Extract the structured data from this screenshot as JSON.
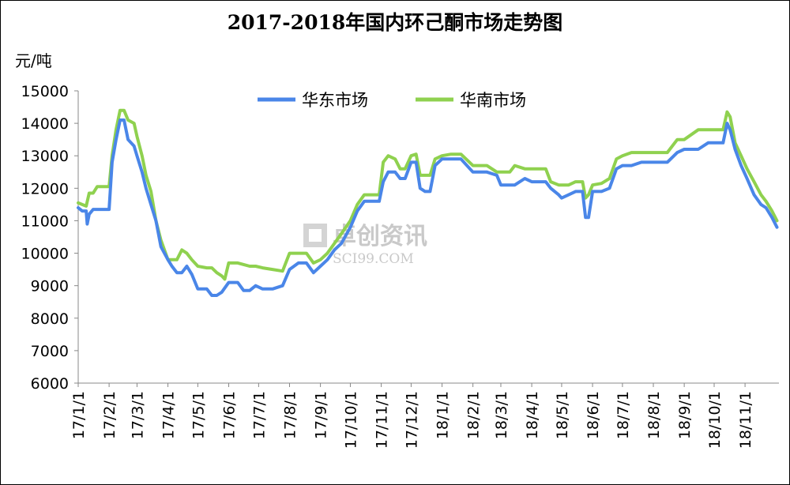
{
  "chart_data": {
    "type": "line",
    "title": "2017-2018年国内环己酮市场走势图",
    "ylabel": "元/吨",
    "xlabel": "",
    "ylim": [
      6000,
      15000
    ],
    "yticks": [
      6000,
      7000,
      8000,
      9000,
      10000,
      11000,
      12000,
      13000,
      14000,
      15000
    ],
    "grid": false,
    "legend_position": "top",
    "x_tick_labels": [
      "17/1/1",
      "17/2/1",
      "17/3/1",
      "17/4/1",
      "17/5/1",
      "17/6/1",
      "17/7/1",
      "17/8/1",
      "17/9/1",
      "17/10/1",
      "17/11/1",
      "17/12/1",
      "18/1/1",
      "18/2/1",
      "18/3/1",
      "18/4/1",
      "18/5/1",
      "18/6/1",
      "18/7/1",
      "18/8/1",
      "18/9/1",
      "18/10/1",
      "18/11/1"
    ],
    "series": [
      {
        "name": "华东市场",
        "color": "#4a86e8",
        "points": [
          [
            "17/1/1",
            11400
          ],
          [
            "17/1/5",
            11300
          ],
          [
            "17/1/9",
            11300
          ],
          [
            "17/1/10",
            10900
          ],
          [
            "17/1/12",
            11200
          ],
          [
            "17/1/16",
            11350
          ],
          [
            "17/2/1",
            11350
          ],
          [
            "17/2/4",
            12800
          ],
          [
            "17/2/8",
            13500
          ],
          [
            "17/2/12",
            14100
          ],
          [
            "17/2/16",
            14100
          ],
          [
            "17/2/20",
            13500
          ],
          [
            "17/2/26",
            13300
          ],
          [
            "17/3/1",
            13000
          ],
          [
            "17/3/6",
            12500
          ],
          [
            "17/3/10",
            12000
          ],
          [
            "17/3/15",
            11500
          ],
          [
            "17/3/20",
            11000
          ],
          [
            "17/3/25",
            10200
          ],
          [
            "17/4/1",
            9800
          ],
          [
            "17/4/5",
            9600
          ],
          [
            "17/4/10",
            9400
          ],
          [
            "17/4/15",
            9400
          ],
          [
            "17/4/20",
            9600
          ],
          [
            "17/4/25",
            9350
          ],
          [
            "17/5/1",
            8900
          ],
          [
            "17/5/10",
            8900
          ],
          [
            "17/5/15",
            8700
          ],
          [
            "17/5/20",
            8700
          ],
          [
            "17/5/25",
            8800
          ],
          [
            "17/6/1",
            9100
          ],
          [
            "17/6/10",
            9100
          ],
          [
            "17/6/16",
            8850
          ],
          [
            "17/6/22",
            8850
          ],
          [
            "17/6/28",
            9000
          ],
          [
            "17/7/5",
            8900
          ],
          [
            "17/7/15",
            8900
          ],
          [
            "17/7/25",
            9000
          ],
          [
            "17/8/1",
            9500
          ],
          [
            "17/8/10",
            9700
          ],
          [
            "17/8/18",
            9700
          ],
          [
            "17/8/25",
            9400
          ],
          [
            "17/9/1",
            9600
          ],
          [
            "17/9/8",
            9800
          ],
          [
            "17/9/15",
            10100
          ],
          [
            "17/9/22",
            10300
          ],
          [
            "17/10/1",
            10800
          ],
          [
            "17/10/8",
            11300
          ],
          [
            "17/10/15",
            11600
          ],
          [
            "17/10/22",
            11600
          ],
          [
            "17/10/30",
            11600
          ],
          [
            "17/11/3",
            12200
          ],
          [
            "17/11/8",
            12500
          ],
          [
            "17/11/15",
            12500
          ],
          [
            "17/11/20",
            12300
          ],
          [
            "17/11/25",
            12300
          ],
          [
            "17/12/1",
            12800
          ],
          [
            "17/12/6",
            12800
          ],
          [
            "17/12/10",
            12000
          ],
          [
            "17/12/15",
            11900
          ],
          [
            "17/12/20",
            11900
          ],
          [
            "17/12/25",
            12700
          ],
          [
            "18/1/1",
            12900
          ],
          [
            "18/1/10",
            12900
          ],
          [
            "18/1/20",
            12900
          ],
          [
            "18/2/1",
            12500
          ],
          [
            "18/2/15",
            12500
          ],
          [
            "18/2/25",
            12400
          ],
          [
            "18/3/1",
            12100
          ],
          [
            "18/3/15",
            12100
          ],
          [
            "18/3/25",
            12300
          ],
          [
            "18/4/1",
            12200
          ],
          [
            "18/4/15",
            12200
          ],
          [
            "18/4/20",
            12000
          ],
          [
            "18/4/28",
            11800
          ],
          [
            "18/5/1",
            11700
          ],
          [
            "18/5/8",
            11800
          ],
          [
            "18/5/15",
            11900
          ],
          [
            "18/5/22",
            11900
          ],
          [
            "18/5/25",
            11100
          ],
          [
            "18/5/28",
            11100
          ],
          [
            "18/6/1",
            11900
          ],
          [
            "18/6/10",
            11900
          ],
          [
            "18/6/18",
            12000
          ],
          [
            "18/6/25",
            12600
          ],
          [
            "18/7/1",
            12700
          ],
          [
            "18/7/10",
            12700
          ],
          [
            "18/7/20",
            12800
          ],
          [
            "18/8/1",
            12800
          ],
          [
            "18/8/15",
            12800
          ],
          [
            "18/8/25",
            13100
          ],
          [
            "18/9/1",
            13200
          ],
          [
            "18/9/15",
            13200
          ],
          [
            "18/9/25",
            13400
          ],
          [
            "18/10/1",
            13400
          ],
          [
            "18/10/10",
            13400
          ],
          [
            "18/10/14",
            14000
          ],
          [
            "18/10/17",
            13800
          ],
          [
            "18/10/22",
            13200
          ],
          [
            "18/10/28",
            12700
          ],
          [
            "18/11/3",
            12300
          ],
          [
            "18/11/10",
            11800
          ],
          [
            "18/11/17",
            11500
          ],
          [
            "18/11/22",
            11400
          ],
          [
            "18/11/28",
            11100
          ],
          [
            "18/12/3",
            10800
          ]
        ]
      },
      {
        "name": "华南市场",
        "color": "#8fd14f",
        "points": [
          [
            "17/1/1",
            11550
          ],
          [
            "17/1/5",
            11500
          ],
          [
            "17/1/9",
            11450
          ],
          [
            "17/1/12",
            11850
          ],
          [
            "17/1/16",
            11850
          ],
          [
            "17/1/20",
            12050
          ],
          [
            "17/2/1",
            12050
          ],
          [
            "17/2/4",
            13000
          ],
          [
            "17/2/8",
            13800
          ],
          [
            "17/2/12",
            14400
          ],
          [
            "17/2/16",
            14400
          ],
          [
            "17/2/20",
            14100
          ],
          [
            "17/2/26",
            14000
          ],
          [
            "17/3/1",
            13600
          ],
          [
            "17/3/6",
            13000
          ],
          [
            "17/3/10",
            12400
          ],
          [
            "17/3/15",
            11900
          ],
          [
            "17/3/20",
            11000
          ],
          [
            "17/3/25",
            10400
          ],
          [
            "17/4/1",
            9800
          ],
          [
            "17/4/5",
            9800
          ],
          [
            "17/4/10",
            9800
          ],
          [
            "17/4/15",
            10100
          ],
          [
            "17/4/20",
            10000
          ],
          [
            "17/4/25",
            9800
          ],
          [
            "17/5/1",
            9600
          ],
          [
            "17/5/10",
            9550
          ],
          [
            "17/5/15",
            9550
          ],
          [
            "17/5/20",
            9400
          ],
          [
            "17/5/25",
            9300
          ],
          [
            "17/5/28",
            9200
          ],
          [
            "17/6/1",
            9700
          ],
          [
            "17/6/10",
            9700
          ],
          [
            "17/6/16",
            9650
          ],
          [
            "17/6/22",
            9600
          ],
          [
            "17/6/28",
            9600
          ],
          [
            "17/7/5",
            9550
          ],
          [
            "17/7/15",
            9500
          ],
          [
            "17/7/25",
            9450
          ],
          [
            "17/8/1",
            10000
          ],
          [
            "17/8/10",
            10000
          ],
          [
            "17/8/18",
            10000
          ],
          [
            "17/8/25",
            9700
          ],
          [
            "17/9/1",
            9800
          ],
          [
            "17/9/8",
            10000
          ],
          [
            "17/9/15",
            10300
          ],
          [
            "17/9/22",
            10600
          ],
          [
            "17/10/1",
            11000
          ],
          [
            "17/10/8",
            11500
          ],
          [
            "17/10/15",
            11800
          ],
          [
            "17/10/22",
            11800
          ],
          [
            "17/10/30",
            11800
          ],
          [
            "17/11/3",
            12800
          ],
          [
            "17/11/8",
            13000
          ],
          [
            "17/11/15",
            12900
          ],
          [
            "17/11/20",
            12600
          ],
          [
            "17/11/25",
            12600
          ],
          [
            "17/12/1",
            13000
          ],
          [
            "17/12/6",
            13050
          ],
          [
            "17/12/10",
            12400
          ],
          [
            "17/12/15",
            12400
          ],
          [
            "17/12/20",
            12400
          ],
          [
            "17/12/25",
            12900
          ],
          [
            "18/1/1",
            13000
          ],
          [
            "18/1/10",
            13050
          ],
          [
            "18/1/20",
            13050
          ],
          [
            "18/2/1",
            12700
          ],
          [
            "18/2/15",
            12700
          ],
          [
            "18/2/25",
            12500
          ],
          [
            "18/3/1",
            12500
          ],
          [
            "18/3/10",
            12500
          ],
          [
            "18/3/15",
            12700
          ],
          [
            "18/3/25",
            12600
          ],
          [
            "18/4/1",
            12600
          ],
          [
            "18/4/15",
            12600
          ],
          [
            "18/4/20",
            12200
          ],
          [
            "18/4/28",
            12100
          ],
          [
            "18/5/1",
            12100
          ],
          [
            "18/5/8",
            12100
          ],
          [
            "18/5/15",
            12200
          ],
          [
            "18/5/22",
            12200
          ],
          [
            "18/5/25",
            11700
          ],
          [
            "18/5/28",
            11800
          ],
          [
            "18/6/1",
            12100
          ],
          [
            "18/6/10",
            12150
          ],
          [
            "18/6/18",
            12300
          ],
          [
            "18/6/25",
            12900
          ],
          [
            "18/7/1",
            13000
          ],
          [
            "18/7/10",
            13100
          ],
          [
            "18/7/20",
            13100
          ],
          [
            "18/8/1",
            13100
          ],
          [
            "18/8/15",
            13100
          ],
          [
            "18/8/25",
            13500
          ],
          [
            "18/9/1",
            13500
          ],
          [
            "18/9/15",
            13800
          ],
          [
            "18/9/25",
            13800
          ],
          [
            "18/10/1",
            13800
          ],
          [
            "18/10/10",
            13800
          ],
          [
            "18/10/14",
            14350
          ],
          [
            "18/10/17",
            14200
          ],
          [
            "18/10/22",
            13400
          ],
          [
            "18/10/28",
            13000
          ],
          [
            "18/11/3",
            12600
          ],
          [
            "18/11/10",
            12200
          ],
          [
            "18/11/17",
            11800
          ],
          [
            "18/11/22",
            11600
          ],
          [
            "18/11/28",
            11300
          ],
          [
            "18/12/3",
            11000
          ]
        ]
      }
    ],
    "watermark": {
      "cn": "卓创资讯",
      "en": "SCI99.COM"
    }
  }
}
